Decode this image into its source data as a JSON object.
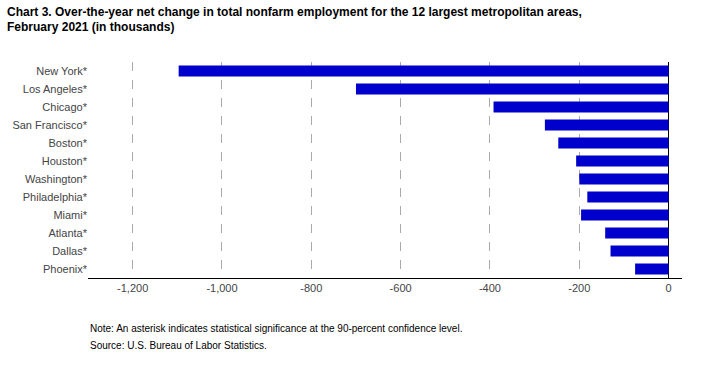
{
  "chart_data": {
    "type": "bar",
    "orientation": "horizontal",
    "title": "Chart 3. Over-the-year net change in total nonfarm employment for the 12 largest metropolitan areas,",
    "subtitle": "February 2021 (in thousands)",
    "categories": [
      "New York*",
      "Los Angeles*",
      "Chicago*",
      "San Francisco*",
      "Boston*",
      "Houston*",
      "Washington*",
      "Philadelphia*",
      "Miami*",
      "Atlanta*",
      "Dallas*",
      "Phoenix*"
    ],
    "values": [
      -1097,
      -700,
      -392,
      -277,
      -247,
      -207,
      -200,
      -182,
      -196,
      -142,
      -130,
      -75
    ],
    "color": "#0000cc",
    "xlim": [
      -1300,
      30
    ],
    "xticks": [
      {
        "value": -1200,
        "label": "-1,200"
      },
      {
        "value": -1000,
        "label": "-1,000"
      },
      -800,
      -600,
      -400,
      -200,
      0
    ],
    "grid": true,
    "annotations": [
      "Note: An asterisk indicates statistical significance at the 90-percent confidence level.",
      "Source: U.S. Bureau of Labor Statistics."
    ]
  }
}
